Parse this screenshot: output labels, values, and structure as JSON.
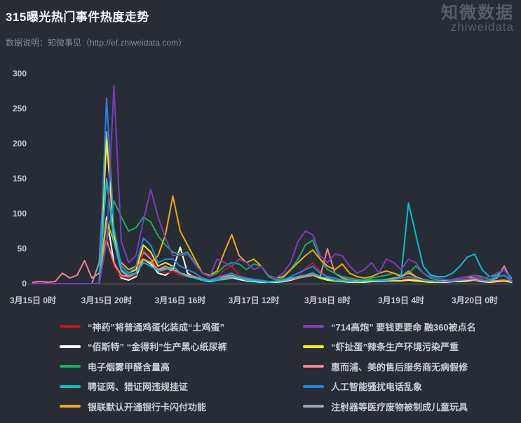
{
  "header": {
    "title": "315曝光热门事件热度走势",
    "subtitle": "数据说明：知微事见（http://ef.zhiweidata.com）",
    "logo_cn": "知微数据",
    "logo_en": "zhiweidata"
  },
  "colors": {
    "background": "#272c35",
    "title": "#f2f3f5",
    "subtitle": "#878c96",
    "logo": "#575e6a",
    "axis_label": "#c6cad2",
    "axis_line": "#6b7078",
    "legend_text": "#c9cdd5"
  },
  "chart_data": {
    "type": "line",
    "title": "315曝光热门事件热度走势",
    "xlabel": "",
    "ylabel": "",
    "ylim": [
      0,
      300
    ],
    "y_ticks": [
      0,
      50,
      100,
      150,
      200,
      250,
      300
    ],
    "grid": false,
    "legend_position": "bottom",
    "x_unit": "hours since 3月15日 0时",
    "x_start_hour": 0,
    "x_step_hours": 2,
    "x_ticks": [
      {
        "hour": 0,
        "label": "3月15日 0时"
      },
      {
        "hour": 20,
        "label": "3月15日 20时"
      },
      {
        "hour": 40,
        "label": "3月16日 16时"
      },
      {
        "hour": 60,
        "label": "3月17日 12时"
      },
      {
        "hour": 80,
        "label": "3月18日 8时"
      },
      {
        "hour": 100,
        "label": "3月19日 4时"
      },
      {
        "hour": 120,
        "label": "3月20日 0时"
      }
    ],
    "series": [
      {
        "key": "shenyao",
        "name": "“神药”将普通鸡蛋化装成“土鸡蛋”",
        "color": "#c0151c",
        "values": [
          0,
          0,
          0,
          0,
          0,
          0,
          0,
          0,
          0,
          0,
          65,
          25,
          10,
          8,
          12,
          48,
          38,
          20,
          15,
          18,
          12,
          10,
          8,
          5,
          5,
          8,
          20,
          25,
          12,
          8,
          6,
          4,
          3,
          3,
          4,
          6,
          10,
          22,
          30,
          18,
          10,
          8,
          5,
          4,
          3,
          3,
          3,
          4,
          5,
          6,
          5,
          8,
          6,
          4,
          3,
          3,
          3,
          4,
          5,
          8,
          10,
          6,
          4,
          8,
          12,
          5
        ]
      },
      {
        "key": "baisite",
        "name": "“佰斯特” “金得利”生产黑心纸尿裤",
        "color": "#ffffff",
        "values": [
          0,
          0,
          0,
          0,
          0,
          0,
          0,
          0,
          0,
          0,
          95,
          30,
          8,
          5,
          10,
          35,
          28,
          15,
          12,
          20,
          52,
          15,
          8,
          5,
          3,
          5,
          8,
          10,
          6,
          4,
          3,
          2,
          2,
          2,
          3,
          5,
          8,
          12,
          15,
          10,
          6,
          4,
          3,
          2,
          2,
          2,
          3,
          3,
          4,
          4,
          4,
          5,
          4,
          3,
          2,
          2,
          2,
          3,
          3,
          4,
          5,
          3,
          2,
          3,
          4,
          2
        ]
      },
      {
        "key": "dianziyan",
        "name": "电子烟雾甲醛含量高",
        "color": "#12b15a",
        "values": [
          0,
          0,
          0,
          0,
          0,
          0,
          0,
          0,
          0,
          0,
          60,
          118,
          95,
          75,
          80,
          95,
          88,
          68,
          55,
          45,
          42,
          45,
          30,
          15,
          10,
          15,
          25,
          30,
          28,
          20,
          28,
          25,
          10,
          5,
          8,
          20,
          35,
          55,
          62,
          35,
          20,
          15,
          10,
          8,
          6,
          5,
          8,
          10,
          12,
          15,
          12,
          15,
          25,
          15,
          8,
          5,
          4,
          6,
          8,
          10,
          12,
          10,
          6,
          10,
          12,
          5
        ]
      },
      {
        "key": "pinzhengwang",
        "name": "聘证网、猎证网违规挂证",
        "color": "#00c3cc",
        "values": [
          0,
          0,
          0,
          0,
          0,
          0,
          0,
          0,
          0,
          0,
          150,
          60,
          20,
          12,
          15,
          30,
          25,
          18,
          20,
          25,
          15,
          10,
          8,
          5,
          4,
          5,
          8,
          10,
          8,
          5,
          4,
          3,
          2,
          3,
          5,
          8,
          10,
          12,
          15,
          10,
          8,
          5,
          4,
          3,
          3,
          4,
          5,
          5,
          5,
          6,
          10,
          115,
          70,
          25,
          12,
          10,
          10,
          15,
          25,
          38,
          42,
          20,
          10,
          12,
          20,
          8
        ]
      },
      {
        "key": "yinlian",
        "name": "银联默认开通银行卡闪付功能",
        "color": "#edaa13",
        "values": [
          0,
          0,
          0,
          0,
          0,
          0,
          0,
          0,
          0,
          0,
          90,
          60,
          30,
          20,
          25,
          35,
          30,
          40,
          70,
          125,
          75,
          55,
          35,
          15,
          12,
          18,
          45,
          70,
          40,
          30,
          35,
          25,
          12,
          8,
          10,
          20,
          30,
          40,
          48,
          35,
          25,
          20,
          28,
          15,
          10,
          8,
          10,
          15,
          18,
          15,
          10,
          15,
          10,
          6,
          4,
          3,
          4,
          5,
          8,
          10,
          8,
          5,
          3,
          4,
          5,
          3
        ]
      },
      {
        "key": "gaopao714",
        "name": "“714高炮” 要钱更要命 融360被点名",
        "color": "#7d3cbd",
        "values": [
          0,
          0,
          0,
          0,
          0,
          0,
          0,
          0,
          0,
          0,
          60,
          283,
          60,
          30,
          40,
          90,
          135,
          95,
          65,
          40,
          40,
          42,
          28,
          15,
          10,
          35,
          30,
          25,
          35,
          30,
          20,
          25,
          12,
          8,
          15,
          30,
          60,
          75,
          70,
          40,
          30,
          42,
          40,
          25,
          15,
          20,
          30,
          15,
          35,
          30,
          20,
          35,
          30,
          15,
          10,
          8,
          6,
          5,
          8,
          10,
          12,
          8,
          10,
          15,
          20,
          5
        ]
      },
      {
        "key": "xiachedan",
        "name": "“虾扯蛋”辣条生产环境污染严重",
        "color": "#f6ee14",
        "values": [
          0,
          0,
          0,
          0,
          0,
          0,
          0,
          0,
          0,
          0,
          205,
          70,
          25,
          15,
          20,
          55,
          45,
          25,
          30,
          25,
          15,
          12,
          8,
          5,
          4,
          5,
          8,
          10,
          8,
          5,
          4,
          3,
          2,
          3,
          4,
          6,
          8,
          10,
          12,
          8,
          5,
          4,
          3,
          3,
          2,
          3,
          3,
          4,
          5,
          4,
          4,
          6,
          5,
          3,
          2,
          2,
          3,
          3,
          4,
          5,
          6,
          4,
          3,
          4,
          5,
          2
        ]
      },
      {
        "key": "huierpu",
        "name": "惠而浦、美的售后服务商无病假修",
        "color": "#f2838b",
        "values": [
          2,
          3,
          2,
          3,
          15,
          8,
          12,
          33,
          8,
          15,
          62,
          30,
          12,
          10,
          15,
          35,
          30,
          20,
          25,
          20,
          15,
          12,
          10,
          6,
          5,
          8,
          10,
          12,
          8,
          6,
          5,
          4,
          3,
          3,
          4,
          6,
          8,
          10,
          12,
          10,
          50,
          15,
          8,
          5,
          4,
          4,
          5,
          5,
          6,
          8,
          10,
          18,
          10,
          5,
          4,
          3,
          3,
          4,
          5,
          6,
          5,
          4,
          3,
          8,
          25,
          4
        ]
      },
      {
        "key": "rengongzhineng",
        "name": "人工智能骚扰电话乱象",
        "color": "#2583e0",
        "values": [
          0,
          0,
          0,
          0,
          0,
          0,
          0,
          0,
          0,
          0,
          265,
          80,
          25,
          15,
          25,
          65,
          55,
          30,
          35,
          35,
          25,
          20,
          15,
          8,
          5,
          8,
          12,
          15,
          10,
          8,
          6,
          5,
          3,
          3,
          5,
          10,
          15,
          20,
          25,
          15,
          10,
          8,
          5,
          4,
          3,
          4,
          5,
          4,
          5,
          6,
          8,
          10,
          8,
          5,
          4,
          3,
          3,
          4,
          5,
          6,
          8,
          5,
          4,
          10,
          12,
          3
        ]
      },
      {
        "key": "zhusheqi",
        "name": "注射器等医疗废物被制成儿童玩具",
        "color": "#9da3ab",
        "values": [
          0,
          0,
          0,
          0,
          0,
          0,
          0,
          0,
          0,
          30,
          217,
          60,
          18,
          10,
          15,
          45,
          35,
          20,
          22,
          18,
          12,
          10,
          8,
          5,
          4,
          5,
          6,
          8,
          6,
          4,
          3,
          3,
          2,
          2,
          3,
          5,
          8,
          10,
          12,
          8,
          5,
          4,
          3,
          3,
          2,
          3,
          3,
          3,
          4,
          4,
          4,
          5,
          4,
          3,
          2,
          2,
          2,
          3,
          3,
          4,
          5,
          3,
          2,
          3,
          4,
          2
        ]
      }
    ]
  }
}
